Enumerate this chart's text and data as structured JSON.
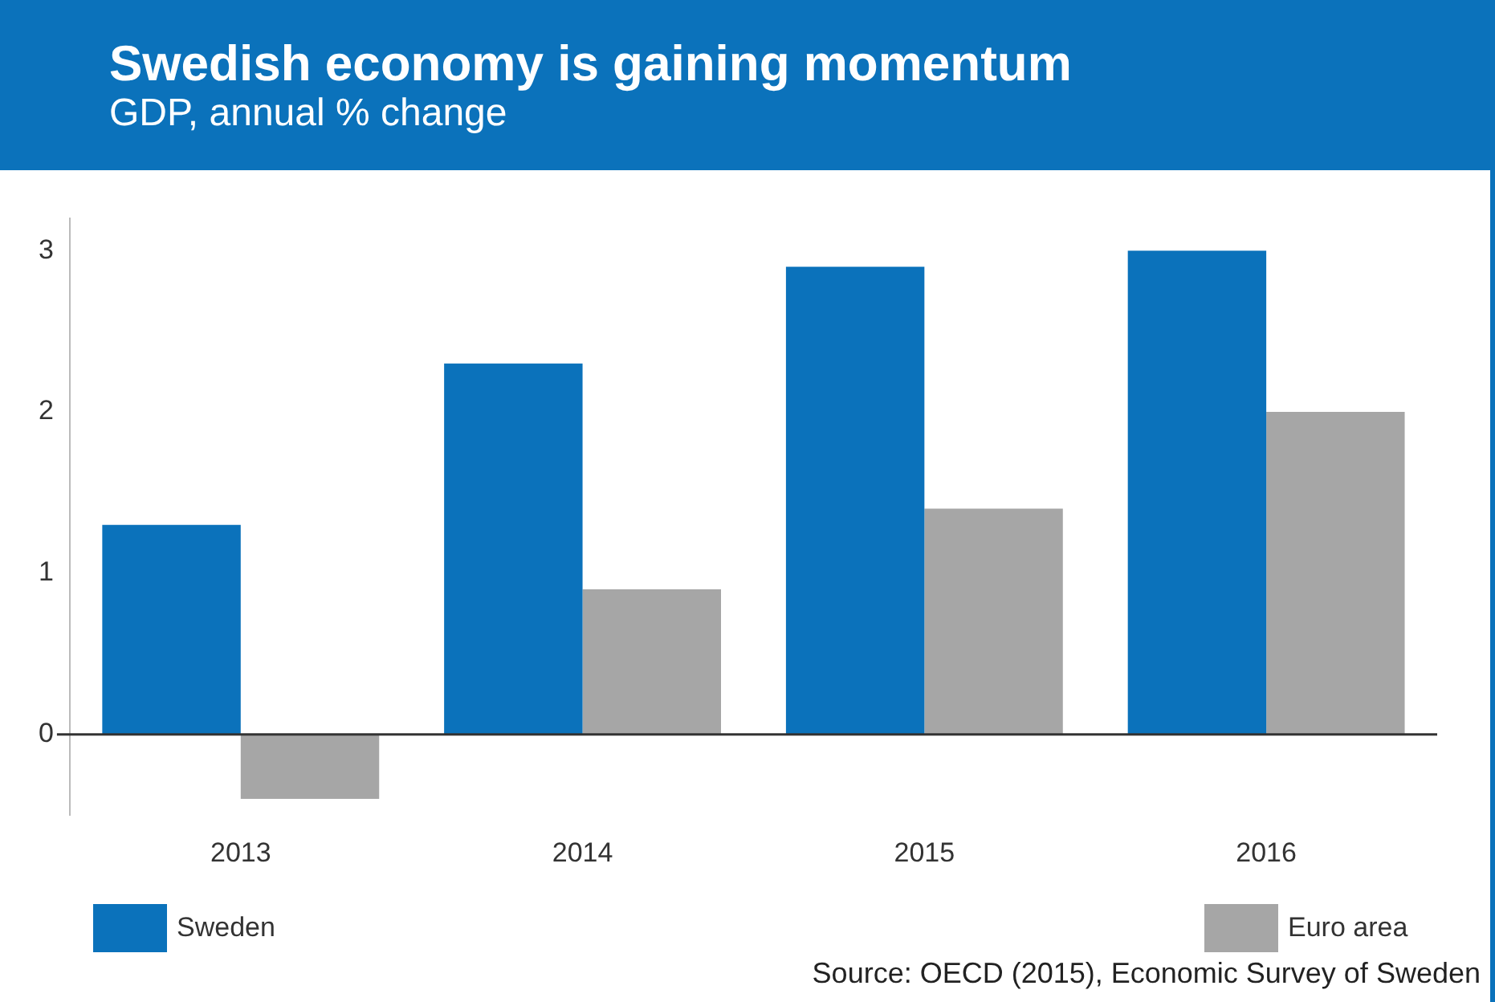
{
  "chart_data": {
    "type": "bar",
    "title": "Swedish economy is gaining momentum",
    "subtitle": "GDP, annual % change",
    "categories": [
      "2013",
      "2014",
      "2015",
      "2016"
    ],
    "series": [
      {
        "name": "Sweden",
        "color": "#0b72bb",
        "values": [
          1.3,
          2.3,
          2.9,
          3.0
        ]
      },
      {
        "name": "Euro area",
        "color": "#a6a6a6",
        "values": [
          -0.4,
          0.9,
          1.4,
          2.0
        ]
      }
    ],
    "ylim": [
      -0.5,
      3.2
    ],
    "yticks": [
      0,
      1,
      2,
      3
    ],
    "grid": false,
    "legend": "bottom",
    "ref_lines": [
      {
        "axis": "y",
        "value": 0,
        "color": "#333333"
      }
    ],
    "annotations": [
      "Source: OECD (2015), Economic Survey of Sweden"
    ]
  }
}
